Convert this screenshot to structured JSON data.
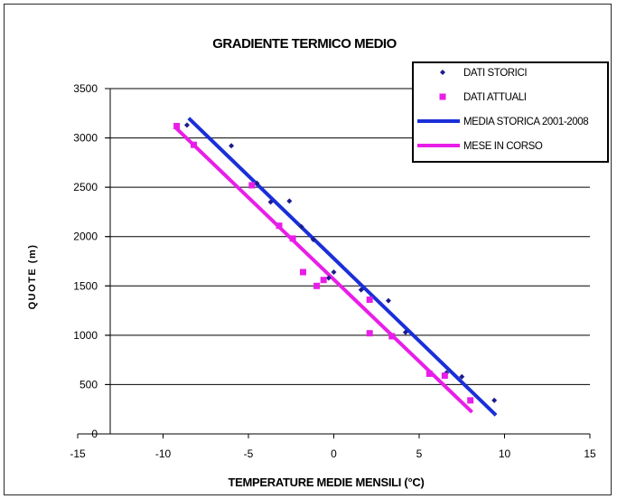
{
  "chart_data": {
    "type": "scatter",
    "title": "GRADIENTE TERMICO MEDIO",
    "xlabel": "TEMPERATURE MEDIE MENSILI (°C)",
    "ylabel": "QUOTE (m)",
    "xlim": [
      -15,
      15
    ],
    "ylim": [
      0,
      3500
    ],
    "x_ticks": [
      -15,
      -10,
      -5,
      0,
      5,
      10,
      15
    ],
    "y_ticks": [
      0,
      500,
      1000,
      1500,
      2000,
      2500,
      3000,
      3500
    ],
    "grid": "horizontal",
    "legend_position": "top-right",
    "series": [
      {
        "name": "DATI STORICI",
        "kind": "points",
        "marker": "diamond",
        "color": "#1c1c8c",
        "points": [
          [
            -8.6,
            3130
          ],
          [
            -6.0,
            2920
          ],
          [
            -4.5,
            2540
          ],
          [
            -3.7,
            2350
          ],
          [
            -2.6,
            2360
          ],
          [
            -1.9,
            2100
          ],
          [
            -1.2,
            1970
          ],
          [
            -0.3,
            1580
          ],
          [
            0.0,
            1640
          ],
          [
            1.6,
            1460
          ],
          [
            2.1,
            1370
          ],
          [
            3.2,
            1350
          ],
          [
            4.2,
            1030
          ],
          [
            6.6,
            620
          ],
          [
            7.5,
            580
          ],
          [
            9.4,
            340
          ]
        ]
      },
      {
        "name": "DATI ATTUALI",
        "kind": "points",
        "marker": "square",
        "color": "#e81ee8",
        "points": [
          [
            -9.2,
            3120
          ],
          [
            -8.2,
            2930
          ],
          [
            -4.8,
            2520
          ],
          [
            -3.2,
            2110
          ],
          [
            -2.4,
            1980
          ],
          [
            -1.8,
            1640
          ],
          [
            -1.0,
            1500
          ],
          [
            -0.6,
            1560
          ],
          [
            2.1,
            1360
          ],
          [
            2.1,
            1020
          ],
          [
            3.4,
            990
          ],
          [
            5.6,
            610
          ],
          [
            6.5,
            590
          ],
          [
            8.0,
            340
          ]
        ]
      },
      {
        "name": "MEDIA STORICA 2001-2008",
        "kind": "line",
        "color": "#1a2fd8",
        "points": [
          [
            -8.5,
            3200
          ],
          [
            9.5,
            190
          ]
        ]
      },
      {
        "name": "MESE IN CORSO",
        "kind": "line",
        "color": "#e81ee8",
        "points": [
          [
            -9.3,
            3110
          ],
          [
            8.1,
            220
          ]
        ]
      }
    ]
  }
}
